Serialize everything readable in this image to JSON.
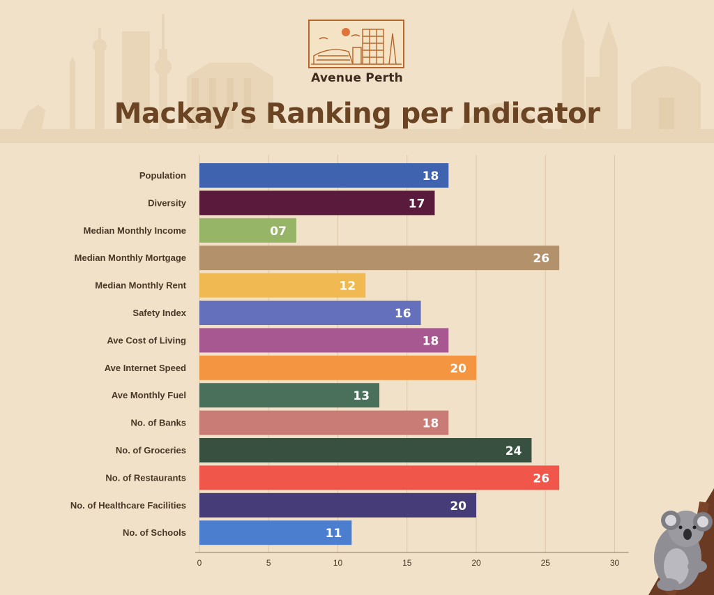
{
  "brand": {
    "name": "Avenue Perth"
  },
  "colors": {
    "background": "#f1e1c8",
    "title": "#6b4423",
    "logo_accent": "#b8652a"
  },
  "chart_data": {
    "type": "bar",
    "orientation": "horizontal",
    "title": "Mackay’s Ranking per Indicator",
    "xlim": [
      0,
      30
    ],
    "xticks": [
      "0",
      "5",
      "10",
      "15",
      "20",
      "25",
      "30"
    ],
    "grid": true,
    "categories": [
      "Population",
      "Diversity",
      "Median Monthly Income",
      "Median Monthly Mortgage",
      "Median Monthly Rent",
      "Safety Index",
      "Ave Cost of Living",
      "Ave Internet Speed",
      "Ave Monthly Fuel",
      "No. of Banks",
      "No. of Groceries",
      "No. of Restaurants",
      "No. of Healthcare Facilities",
      "No. of Schools"
    ],
    "values": [
      18,
      17,
      7,
      26,
      12,
      16,
      18,
      20,
      13,
      18,
      24,
      26,
      20,
      11
    ],
    "value_labels": [
      "18",
      "17",
      "07",
      "26",
      "12",
      "16",
      "18",
      "20",
      "13",
      "18",
      "24",
      "26",
      "20",
      "11"
    ],
    "bar_colors": [
      "#3f63ae",
      "#5a1a3c",
      "#97b567",
      "#b3916a",
      "#f0b952",
      "#6470bb",
      "#a85890",
      "#f39541",
      "#4a6f5a",
      "#c97b75",
      "#37503f",
      "#f0574a",
      "#463c78",
      "#4c7ed0"
    ]
  }
}
